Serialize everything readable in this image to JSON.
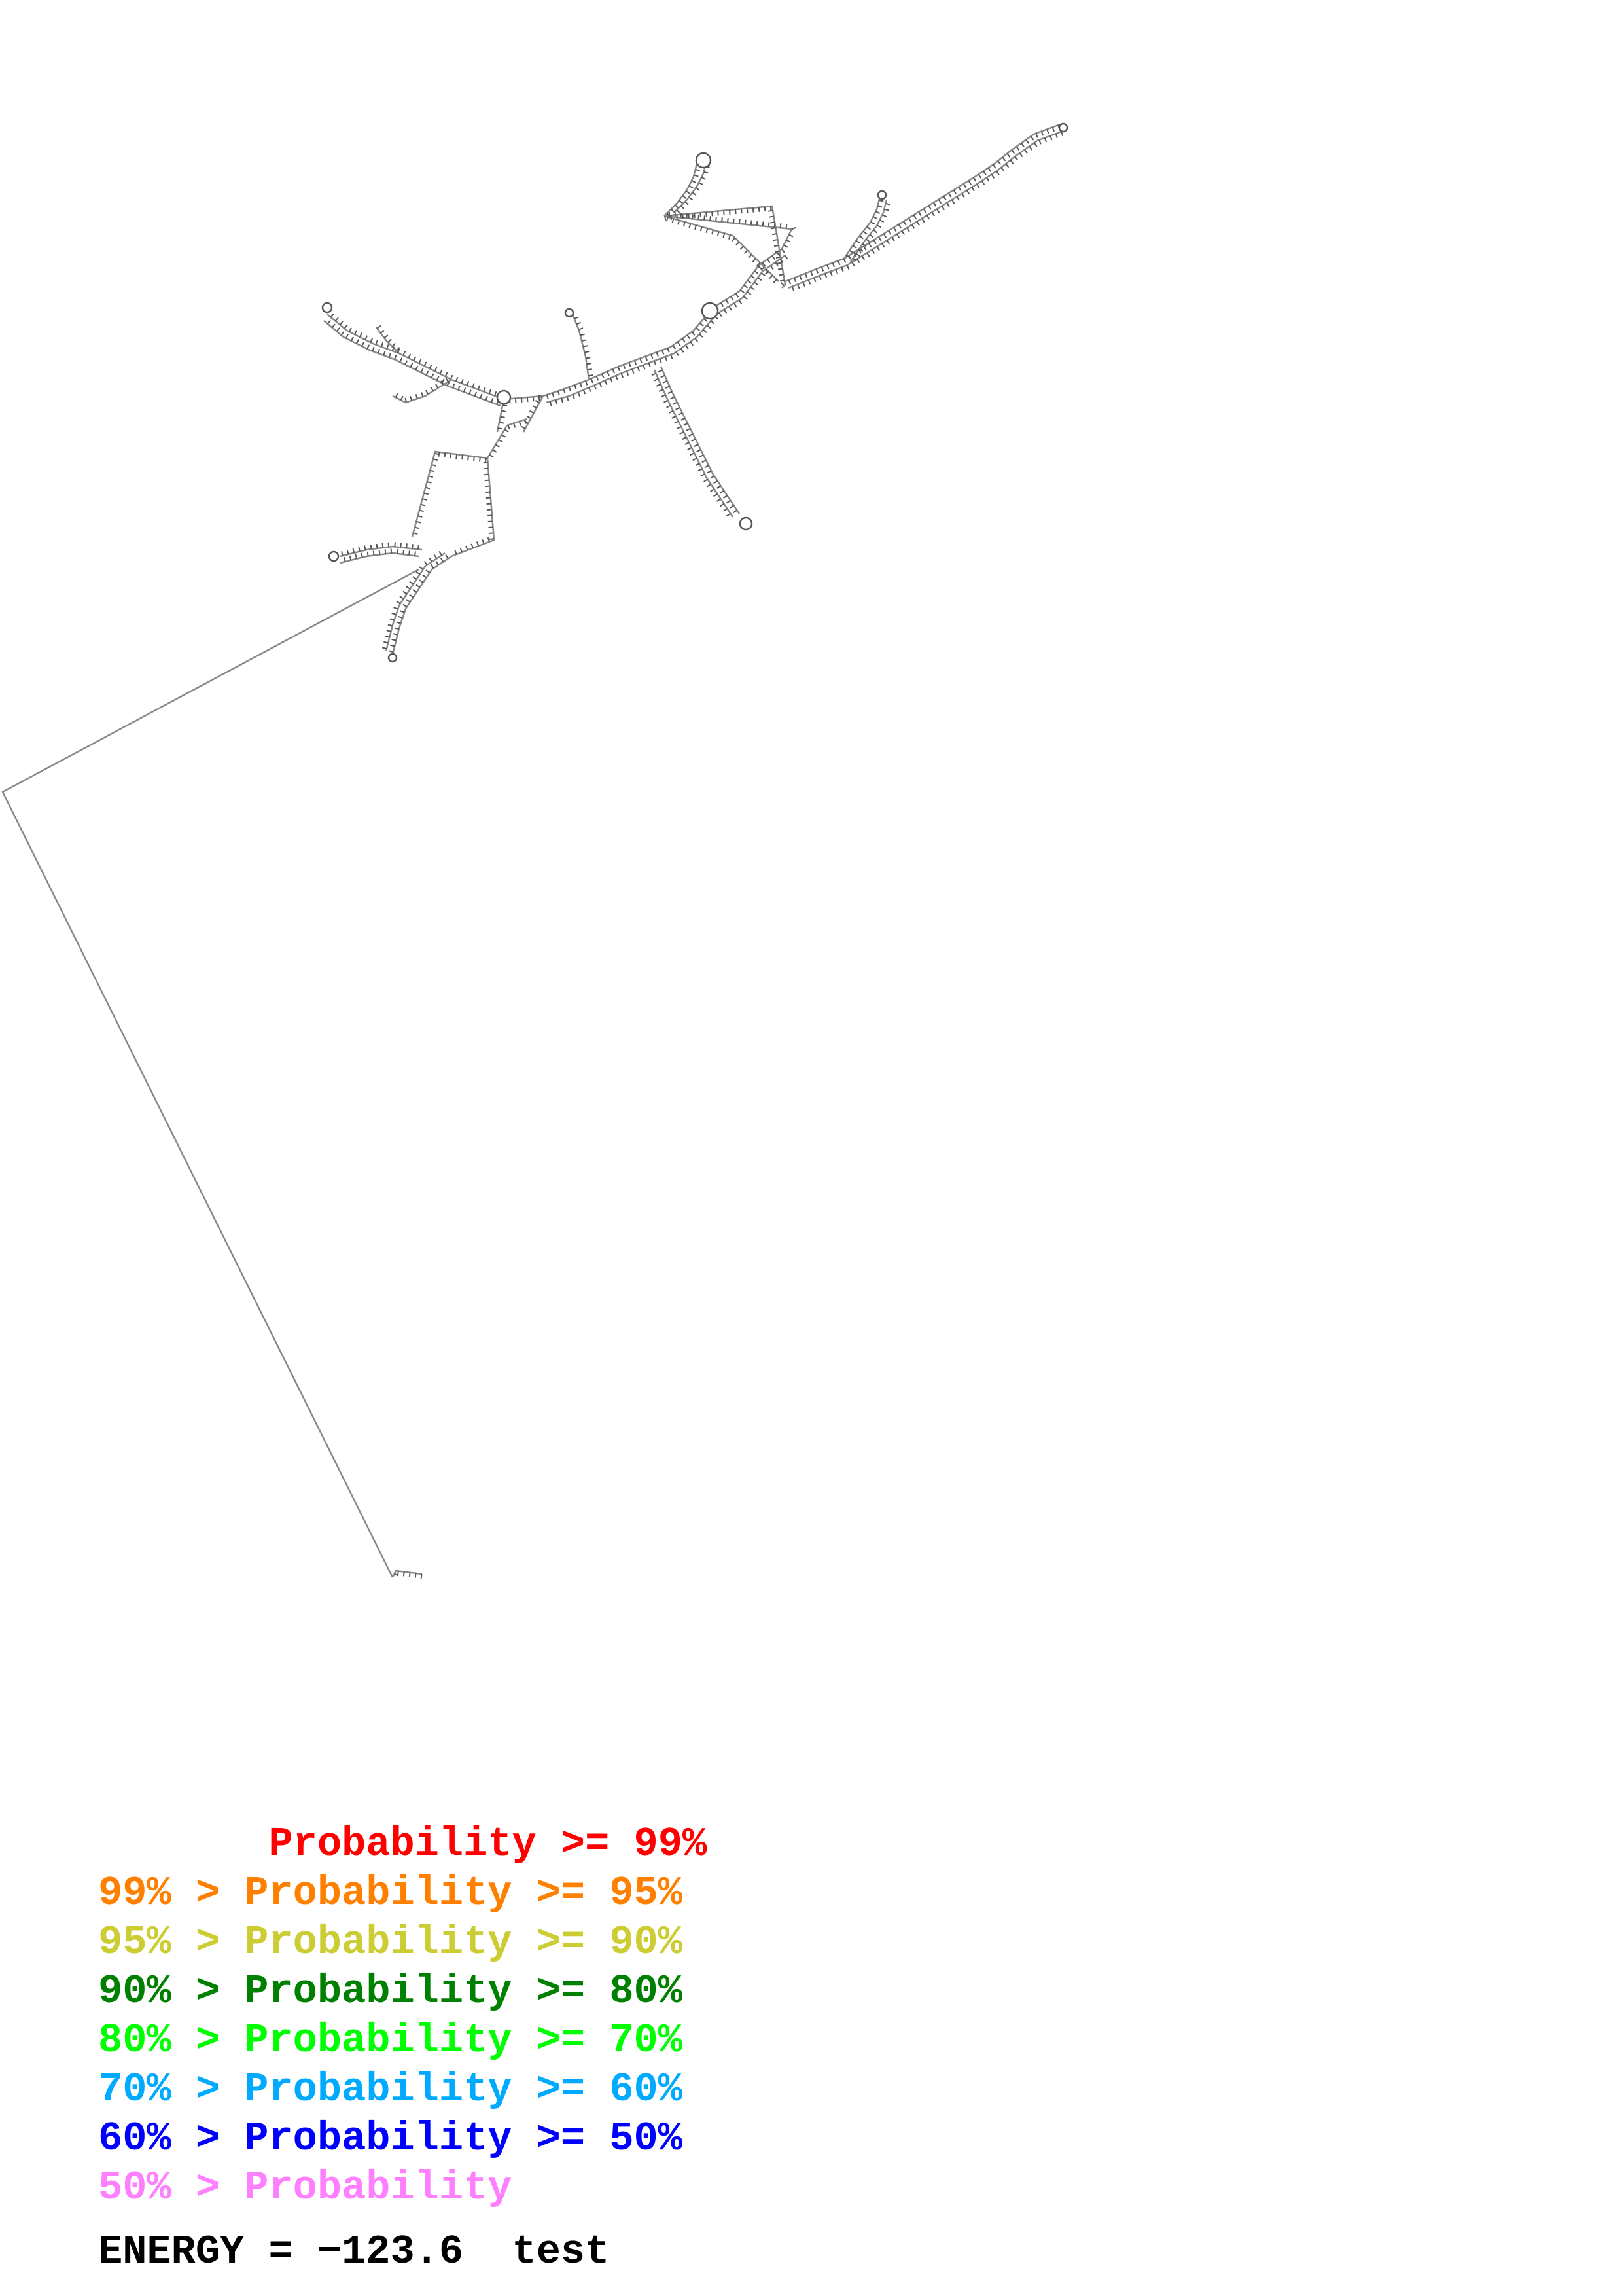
{
  "legend": {
    "rows": [
      {
        "text": "       Probability >= 99%",
        "color": "#ff0000"
      },
      {
        "text": "99% > Probability >= 95%",
        "color": "#ff8000"
      },
      {
        "text": "95% > Probability >= 90%",
        "color": "#cccc33"
      },
      {
        "text": "90% > Probability >= 80%",
        "color": "#008000"
      },
      {
        "text": "80% > Probability >= 70%",
        "color": "#00ff00"
      },
      {
        "text": "70% > Probability >= 60%",
        "color": "#00aaff"
      },
      {
        "text": "60% > Probability >= 50%",
        "color": "#0000ff"
      },
      {
        "text": "50% > Probability",
        "color": "#ff80ff"
      }
    ]
  },
  "energy": {
    "text": "ENERGY = −123.6  test"
  },
  "structure": {
    "line_color": "#888888",
    "base_color": "#555555"
  }
}
